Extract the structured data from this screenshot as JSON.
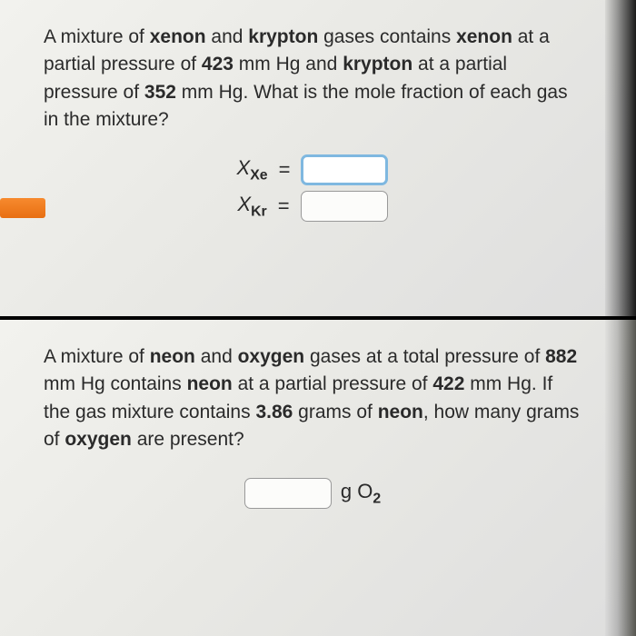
{
  "q1": {
    "text_parts": {
      "p1": "A mixture of ",
      "b1": "xenon",
      "p2": " and ",
      "b2": "krypton",
      "p3": " gases contains ",
      "b3": "xenon",
      "p4": " at a partial pressure of ",
      "b4": "423",
      "p5": " mm Hg and ",
      "b5": "krypton",
      "p6": " at a partial pressure of ",
      "b6": "352",
      "p7": " mm Hg. What is the mole fraction of each gas in the mixture?"
    },
    "labels": {
      "x": "X",
      "xe": "Xe",
      "kr": "Kr",
      "eq": "="
    },
    "colors": {
      "orange": "#e86f12",
      "input_active_border": "#7fb8e0"
    }
  },
  "q2": {
    "text_parts": {
      "p1": "A mixture of ",
      "b1": "neon",
      "p2": " and ",
      "b2": "oxygen",
      "p3": " gases at a total pressure of ",
      "b3": "882",
      "p4": " mm Hg contains ",
      "b4": "neon",
      "p5": " at a partial pressure of ",
      "b5": "422",
      "p6": " mm Hg. If the gas mixture contains ",
      "b6": "3.86",
      "p7": " grams of ",
      "b7": "neon",
      "p8": ", how many grams of ",
      "b8": "oxygen",
      "p9": " are present?"
    },
    "labels": {
      "unit_g": "g O",
      "unit_sub": "2"
    }
  }
}
